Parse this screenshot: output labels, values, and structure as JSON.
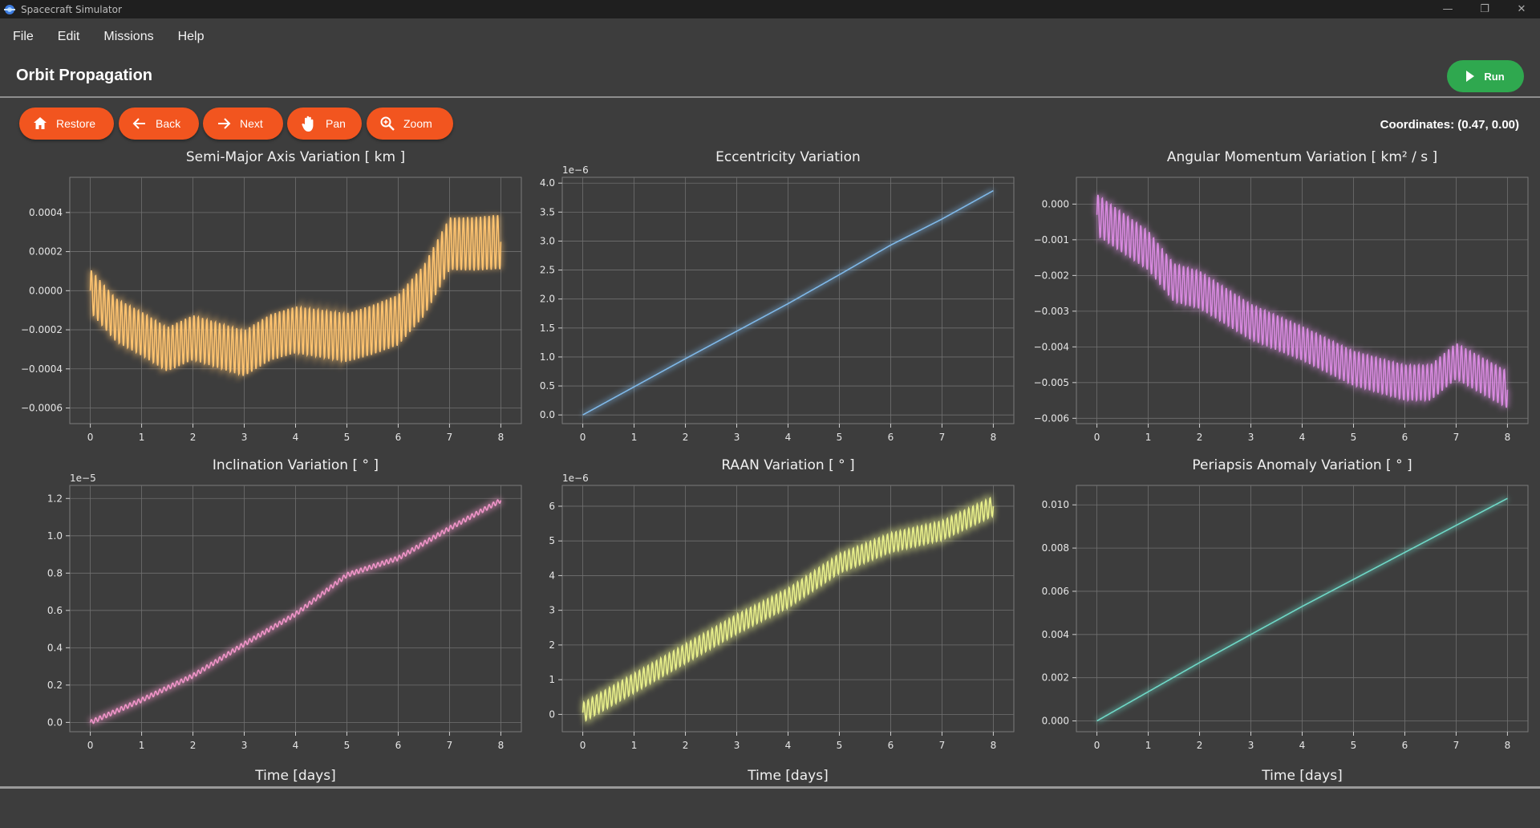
{
  "window": {
    "title": "Spacecraft Simulator",
    "minimize": "—",
    "restore": "❐",
    "close": "✕"
  },
  "menu": [
    "File",
    "Edit",
    "Missions",
    "Help"
  ],
  "header": {
    "title": "Orbit Propagation",
    "run_label": "Run"
  },
  "toolbar": {
    "buttons": [
      {
        "label": "Restore",
        "icon": "home-icon"
      },
      {
        "label": "Back",
        "icon": "arrow-left-icon"
      },
      {
        "label": "Next",
        "icon": "arrow-right-icon"
      },
      {
        "label": "Pan",
        "icon": "hand-icon"
      },
      {
        "label": "Zoom",
        "icon": "magnifier-icon"
      }
    ],
    "coordinates": "Coordinates: (0.47, 0.00)"
  },
  "chart_data": [
    {
      "type": "line",
      "title": "Semi-Major Axis Variation [ km ]",
      "xlabel": "",
      "ylabel": "",
      "color": "#ffc470",
      "xlim": [
        -0.4,
        8.4
      ],
      "ylim": [
        -0.00068,
        0.00058
      ],
      "xticks": [
        "0",
        "1",
        "2",
        "3",
        "4",
        "5",
        "6",
        "7",
        "8"
      ],
      "yticks": [
        {
          "v": 0.0004,
          "label": "0.0004"
        },
        {
          "v": 0.0002,
          "label": "0.0002"
        },
        {
          "v": 0.0,
          "label": "0.0000"
        },
        {
          "v": -0.0002,
          "label": "−0.0002"
        },
        {
          "v": -0.0004,
          "label": "−0.0004"
        },
        {
          "v": -0.0006,
          "label": "−0.0006"
        }
      ],
      "exponent": "",
      "trend": [
        [
          0,
          0.0
        ],
        [
          0.5,
          -0.00015
        ],
        [
          1,
          -0.00022
        ],
        [
          1.5,
          -0.0003
        ],
        [
          2,
          -0.00024
        ],
        [
          2.5,
          -0.00028
        ],
        [
          3,
          -0.00032
        ],
        [
          3.5,
          -0.00024
        ],
        [
          4,
          -0.0002
        ],
        [
          4.5,
          -0.00022
        ],
        [
          5,
          -0.00024
        ],
        [
          5.5,
          -0.0002
        ],
        [
          6,
          -0.00015
        ],
        [
          6.5,
          0.0
        ],
        [
          7,
          0.00024
        ],
        [
          7.5,
          0.00024
        ],
        [
          8,
          0.00025
        ]
      ],
      "amp": [
        [
          0,
          0.00011
        ],
        [
          4,
          0.00012
        ],
        [
          6,
          0.00013
        ],
        [
          8,
          0.00014
        ]
      ],
      "osc_per_day": 12
    },
    {
      "type": "line",
      "title": "Eccentricity Variation",
      "xlabel": "",
      "ylabel": "",
      "color": "#7fb8e8",
      "xlim": [
        -0.4,
        8.4
      ],
      "ylim": [
        -0.15,
        4.1
      ],
      "xticks": [
        "0",
        "1",
        "2",
        "3",
        "4",
        "5",
        "6",
        "7",
        "8"
      ],
      "yticks": [
        {
          "v": 0.0,
          "label": "0.0"
        },
        {
          "v": 0.5,
          "label": "0.5"
        },
        {
          "v": 1.0,
          "label": "1.0"
        },
        {
          "v": 1.5,
          "label": "1.5"
        },
        {
          "v": 2.0,
          "label": "2.0"
        },
        {
          "v": 2.5,
          "label": "2.5"
        },
        {
          "v": 3.0,
          "label": "3.0"
        },
        {
          "v": 3.5,
          "label": "3.5"
        },
        {
          "v": 4.0,
          "label": "4.0"
        }
      ],
      "exponent": "1e−6",
      "trend": [
        [
          0,
          0.0
        ],
        [
          2,
          0.97
        ],
        [
          4,
          1.92
        ],
        [
          5,
          2.42
        ],
        [
          6,
          2.93
        ],
        [
          7,
          3.38
        ],
        [
          8,
          3.87
        ]
      ],
      "amp": [
        [
          0,
          0.0
        ],
        [
          8,
          0.0
        ]
      ],
      "osc_per_day": 12
    },
    {
      "type": "line",
      "title": "Angular Momentum Variation [ km² / s ]",
      "xlabel": "",
      "ylabel": "",
      "color": "#d98ae0",
      "xlim": [
        -0.4,
        8.4
      ],
      "ylim": [
        -0.00615,
        0.00075
      ],
      "xticks": [
        "0",
        "1",
        "2",
        "3",
        "4",
        "5",
        "6",
        "7",
        "8"
      ],
      "yticks": [
        {
          "v": 0.0,
          "label": "0.000"
        },
        {
          "v": -0.001,
          "label": "−0.001"
        },
        {
          "v": -0.002,
          "label": "−0.002"
        },
        {
          "v": -0.003,
          "label": "−0.003"
        },
        {
          "v": -0.004,
          "label": "−0.004"
        },
        {
          "v": -0.005,
          "label": "−0.005"
        },
        {
          "v": -0.006,
          "label": "−0.006"
        }
      ],
      "exponent": "",
      "trend": [
        [
          0,
          -0.0003
        ],
        [
          1,
          -0.0013
        ],
        [
          1.5,
          -0.0022
        ],
        [
          2,
          -0.0024
        ],
        [
          3,
          -0.0033
        ],
        [
          4,
          -0.0039
        ],
        [
          5,
          -0.0046
        ],
        [
          6,
          -0.005
        ],
        [
          6.5,
          -0.005
        ],
        [
          7,
          -0.0044
        ],
        [
          7.5,
          -0.0048
        ],
        [
          8,
          -0.0052
        ]
      ],
      "amp": [
        [
          0,
          0.00058
        ],
        [
          4,
          0.00048
        ],
        [
          8,
          0.00052
        ]
      ],
      "osc_per_day": 12
    },
    {
      "type": "line",
      "title": "Inclination Variation [ ° ]",
      "xlabel": "Time [days]",
      "ylabel": "",
      "color": "#f094c8",
      "xlim": [
        -0.4,
        8.4
      ],
      "ylim": [
        -0.05,
        1.27
      ],
      "xticks": [
        "0",
        "1",
        "2",
        "3",
        "4",
        "5",
        "6",
        "7",
        "8"
      ],
      "yticks": [
        {
          "v": 0.0,
          "label": "0.0"
        },
        {
          "v": 0.2,
          "label": "0.2"
        },
        {
          "v": 0.4,
          "label": "0.4"
        },
        {
          "v": 0.6,
          "label": "0.6"
        },
        {
          "v": 0.8,
          "label": "0.8"
        },
        {
          "v": 1.0,
          "label": "1.0"
        },
        {
          "v": 1.2,
          "label": "1.2"
        }
      ],
      "exponent": "1e−5",
      "trend": [
        [
          0,
          0.0
        ],
        [
          1,
          0.12
        ],
        [
          2,
          0.25
        ],
        [
          3,
          0.42
        ],
        [
          4,
          0.58
        ],
        [
          5,
          0.79
        ],
        [
          6,
          0.88
        ],
        [
          7,
          1.04
        ],
        [
          8,
          1.19
        ]
      ],
      "amp": [
        [
          0,
          0.012
        ],
        [
          8,
          0.012
        ]
      ],
      "osc_per_day": 12
    },
    {
      "type": "line",
      "title": "RAAN Variation [ ° ]",
      "xlabel": "Time [days]",
      "ylabel": "",
      "color": "#e8ef8a",
      "xlim": [
        -0.4,
        8.4
      ],
      "ylim": [
        -0.5,
        6.6
      ],
      "xticks": [
        "0",
        "1",
        "2",
        "3",
        "4",
        "5",
        "6",
        "7",
        "8"
      ],
      "yticks": [
        {
          "v": 0,
          "label": "0"
        },
        {
          "v": 1,
          "label": "1"
        },
        {
          "v": 2,
          "label": "2"
        },
        {
          "v": 3,
          "label": "3"
        },
        {
          "v": 4,
          "label": "4"
        },
        {
          "v": 5,
          "label": "5"
        },
        {
          "v": 6,
          "label": "6"
        }
      ],
      "exponent": "1e−6",
      "trend": [
        [
          0,
          0.05
        ],
        [
          1,
          0.9
        ],
        [
          2,
          1.75
        ],
        [
          3,
          2.6
        ],
        [
          4,
          3.35
        ],
        [
          5,
          4.35
        ],
        [
          6,
          4.95
        ],
        [
          7,
          5.3
        ],
        [
          8,
          6.0
        ]
      ],
      "amp": [
        [
          0,
          0.28
        ],
        [
          8,
          0.28
        ]
      ],
      "osc_per_day": 12
    },
    {
      "type": "line",
      "title": "Periapsis Anomaly Variation [ ° ]",
      "xlabel": "Time [days]",
      "ylabel": "",
      "color": "#6fd8c7",
      "xlim": [
        -0.4,
        8.4
      ],
      "ylim": [
        -0.0005,
        0.0109
      ],
      "xticks": [
        "0",
        "1",
        "2",
        "3",
        "4",
        "5",
        "6",
        "7",
        "8"
      ],
      "yticks": [
        {
          "v": 0.0,
          "label": "0.000"
        },
        {
          "v": 0.002,
          "label": "0.002"
        },
        {
          "v": 0.004,
          "label": "0.004"
        },
        {
          "v": 0.006,
          "label": "0.006"
        },
        {
          "v": 0.008,
          "label": "0.008"
        },
        {
          "v": 0.01,
          "label": "0.010"
        }
      ],
      "exponent": "",
      "trend": [
        [
          0,
          0.0
        ],
        [
          2,
          0.0027
        ],
        [
          4,
          0.0053
        ],
        [
          6,
          0.0078
        ],
        [
          8,
          0.0103
        ]
      ],
      "amp": [
        [
          0,
          0.0
        ],
        [
          8,
          0.0
        ]
      ],
      "osc_per_day": 12
    }
  ]
}
